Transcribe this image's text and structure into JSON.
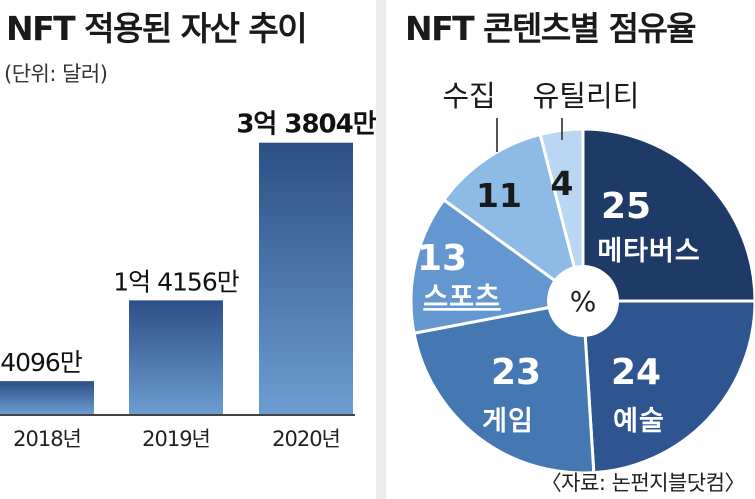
{
  "colors": {
    "bar_top": "#2c4f86",
    "bar_bottom": "#6c9dd0",
    "divider": "#ececec",
    "metaverse": "#1e3a66",
    "art": "#2f5590",
    "game": "#4577b3",
    "sports": "#6497cf",
    "collectibles": "#8dbbe6",
    "utility": "#b9d7f2"
  },
  "chart_data": [
    {
      "type": "bar",
      "title": "NFT 적용된 자산 추이",
      "unit_label": "(단위: 달러)",
      "categories": [
        "2018년",
        "2019년",
        "2020년"
      ],
      "values": [
        40960000,
        141560000,
        338040000
      ],
      "value_labels": [
        "4096만",
        "1억 4156만",
        "3억 3804만"
      ],
      "ylim": [
        0,
        380000000
      ]
    },
    {
      "type": "pie",
      "title": "NFT 콘텐츠별 점유율",
      "center_label": "%",
      "slices": [
        {
          "label": "메타버스",
          "value": 25,
          "color_key": "metaverse"
        },
        {
          "label": "예술",
          "value": 24,
          "color_key": "art"
        },
        {
          "label": "게임",
          "value": 23,
          "color_key": "game"
        },
        {
          "label": "스포츠",
          "value": 13,
          "color_key": "sports"
        },
        {
          "label": "수집",
          "value": 11,
          "color_key": "collectibles"
        },
        {
          "label": "유틸리티",
          "value": 4,
          "color_key": "utility"
        }
      ],
      "source": "〈자료: 논펀지블닷컴〉"
    }
  ]
}
